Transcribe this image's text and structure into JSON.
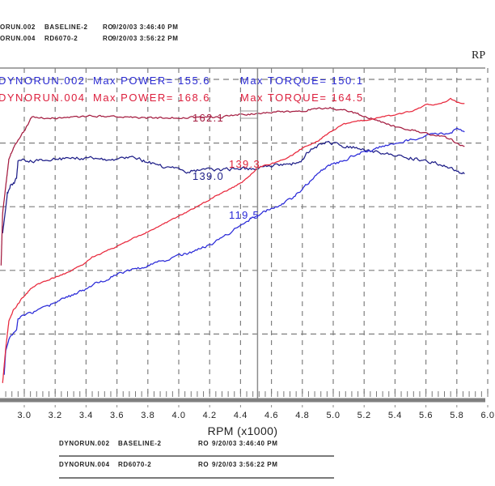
{
  "header": {
    "runs": [
      {
        "run_id": "ORUN.002",
        "run_name": "BASELINE-2",
        "operator": "RO",
        "timestamp": "9/20/03 3:46:40 PM"
      },
      {
        "run_id": "ORUN.004",
        "run_name": "RD6070-2",
        "operator": "RO",
        "timestamp": "9/20/03 3:56:22 PM"
      }
    ]
  },
  "title_fragment": "RP",
  "footer": {
    "runs": [
      {
        "run_id": "DYNORUN.002",
        "run_name": "BASELINE-2",
        "operator": "RO",
        "timestamp": "9/20/03 3:46:40 PM"
      },
      {
        "run_id": "DYNORUN.004",
        "run_name": "RD6070-2",
        "operator": "RO",
        "timestamp": "9/20/03 3:56:22 PM"
      }
    ]
  },
  "chart_data": {
    "type": "line",
    "title": "",
    "xlabel": "RPM (x1000)",
    "ylabel": "",
    "x_ticks": [
      "3.0",
      "3.2",
      "3.4",
      "3.6",
      "3.8",
      "4.0",
      "4.2",
      "4.4",
      "4.6",
      "4.8",
      "5.0",
      "5.2",
      "5.4",
      "5.6",
      "5.8",
      "6.0"
    ],
    "xlim": [
      2.84,
      6.0
    ],
    "ylim": [
      42.1,
      176.7
    ],
    "grid": true,
    "legend_position": "top-left",
    "legend": [
      {
        "run": "DYNORUN.002",
        "power_label": "Max POWER= 155.6",
        "torque_label": "Max TORQUE= 150.1",
        "color": "#2a2ad2"
      },
      {
        "run": "DYNORUN.004",
        "power_label": "Max POWER= 168.6",
        "torque_label": "Max TORQUE= 164.5",
        "color": "#dc1e3c"
      }
    ],
    "cursor": {
      "rpm": 4.51,
      "values": [
        {
          "series": "DYNORUN.004 Torque",
          "text": "162.1",
          "color": "#a41c40"
        },
        {
          "series": "DYNORUN.004 Power",
          "text": "139.3",
          "color": "#e0243a"
        },
        {
          "series": "DYNORUN.002 Torque",
          "text": "139.0",
          "color": "#1e1e88"
        },
        {
          "series": "DYNORUN.002 Power",
          "text": "119.5",
          "color": "#2a2ad8"
        }
      ]
    },
    "series": [
      {
        "name": "DYNORUN.002 Torque",
        "run": "DYNORUN.002",
        "measure": "torque",
        "max": 150.1,
        "color": "#1e1e88",
        "x": [
          2.86,
          2.88,
          2.89,
          2.91,
          2.93,
          2.95,
          2.96,
          2.98,
          3.05,
          3.16,
          3.31,
          3.42,
          3.58,
          3.71,
          3.79,
          3.89,
          4.0,
          4.05,
          4.15,
          4.26,
          4.41,
          4.51,
          4.62,
          4.73,
          4.8,
          4.83,
          4.9,
          4.96,
          5.07,
          5.15,
          5.3,
          5.41,
          5.51,
          5.6,
          5.7,
          5.76,
          5.8,
          5.85
        ],
        "values": [
          111.7,
          122.3,
          128.1,
          131.5,
          132.5,
          134.9,
          142.5,
          142.8,
          142.1,
          142.8,
          143.2,
          143.5,
          142.8,
          143.5,
          141.8,
          140.1,
          138.4,
          137.7,
          138.4,
          138.4,
          139.0,
          139.0,
          140.4,
          140.7,
          142.5,
          145.9,
          148.6,
          150.1,
          148.6,
          147.6,
          145.9,
          144.5,
          143.5,
          142.5,
          140.8,
          139.4,
          138.4,
          136.7
        ]
      },
      {
        "name": "DYNORUN.002 Power",
        "run": "DYNORUN.002",
        "measure": "power",
        "max": 155.6,
        "color": "#2a2ad8",
        "x": [
          2.87,
          2.88,
          2.9,
          2.91,
          2.95,
          2.96,
          3.02,
          3.1,
          3.19,
          3.28,
          3.37,
          3.44,
          3.59,
          3.71,
          3.79,
          3.94,
          4.1,
          4.2,
          4.31,
          4.41,
          4.51,
          4.59,
          4.66,
          4.73,
          4.8,
          4.89,
          4.97,
          5.07,
          5.15,
          5.3,
          5.41,
          5.51,
          5.6,
          5.7,
          5.76,
          5.8,
          5.85
        ],
        "values": [
          51.7,
          62.0,
          66.4,
          68.2,
          70.9,
          75.7,
          77.4,
          79.1,
          81.9,
          84.6,
          87.0,
          89.7,
          93.9,
          96.2,
          98.0,
          100.7,
          104.1,
          106.8,
          111.0,
          115.7,
          119.5,
          121.9,
          123.6,
          126.4,
          130.5,
          136.6,
          140.1,
          142.5,
          145.2,
          148.0,
          149.3,
          151.4,
          153.1,
          153.8,
          154.5,
          155.6,
          154.5
        ]
      },
      {
        "name": "DYNORUN.004 Torque",
        "run": "DYNORUN.004",
        "measure": "torque",
        "max": 164.5,
        "color": "#a41c40",
        "x": [
          2.85,
          2.86,
          2.9,
          2.92,
          2.96,
          3.0,
          3.04,
          3.05,
          3.1,
          3.21,
          3.31,
          3.42,
          3.58,
          3.79,
          4.05,
          4.26,
          4.41,
          4.51,
          4.62,
          4.73,
          4.8,
          4.89,
          4.99,
          5.09,
          5.15,
          5.3,
          5.41,
          5.51,
          5.6,
          5.7,
          5.76,
          5.8,
          5.85
        ],
        "values": [
          98.0,
          120.2,
          142.8,
          146.2,
          151.0,
          154.8,
          159.9,
          160.6,
          160.3,
          160.3,
          160.6,
          161.3,
          161.0,
          160.3,
          160.6,
          160.6,
          162.0,
          162.1,
          163.0,
          163.0,
          163.4,
          164.5,
          164.5,
          163.4,
          162.3,
          158.9,
          156.5,
          155.5,
          153.8,
          152.8,
          151.4,
          149.7,
          148.3
        ]
      },
      {
        "name": "DYNORUN.004 Power",
        "run": "DYNORUN.004",
        "measure": "power",
        "max": 168.6,
        "color": "#e8283c",
        "x": [
          2.86,
          2.88,
          2.9,
          2.93,
          2.98,
          3.04,
          3.1,
          3.19,
          3.28,
          3.37,
          3.44,
          3.59,
          3.79,
          3.94,
          4.1,
          4.26,
          4.31,
          4.41,
          4.51,
          4.59,
          4.66,
          4.73,
          4.8,
          4.89,
          4.99,
          5.07,
          5.15,
          5.3,
          5.41,
          5.51,
          5.6,
          5.7,
          5.76,
          5.8,
          5.85
        ],
        "values": [
          48.3,
          63.0,
          74.3,
          79.1,
          83.6,
          88.0,
          90.4,
          92.8,
          94.9,
          98.0,
          101.4,
          105.8,
          112.0,
          116.8,
          122.2,
          128.1,
          129.5,
          133.2,
          139.3,
          140.8,
          142.4,
          144.5,
          147.6,
          150.3,
          154.8,
          157.9,
          158.9,
          160.6,
          161.7,
          163.4,
          165.8,
          166.5,
          168.6,
          167.1,
          166.5
        ]
      }
    ]
  }
}
